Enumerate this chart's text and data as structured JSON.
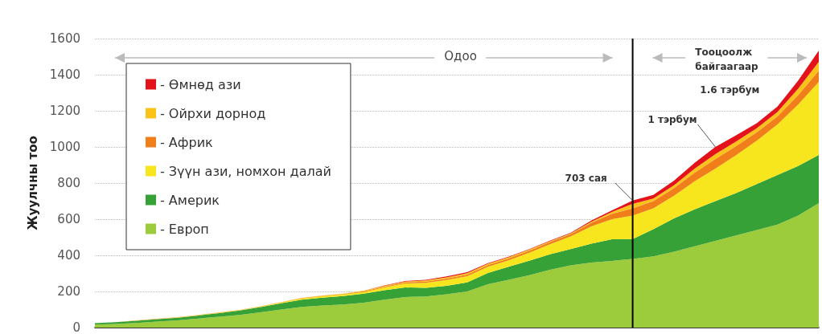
{
  "chart_data": {
    "type": "area",
    "stacked": true,
    "ylabel": "Жуулчны тоо",
    "categories": [
      null,
      null,
      null,
      null,
      null,
      null,
      null,
      null,
      null,
      null,
      null,
      null,
      null,
      null,
      null,
      null,
      null,
      null,
      null,
      null,
      null,
      null,
      null,
      null,
      null,
      null,
      null,
      null,
      null,
      null,
      null,
      null,
      null,
      null,
      null,
      null
    ],
    "ylim": [
      0,
      1600
    ],
    "yticks": [
      0,
      200,
      400,
      600,
      800,
      1000,
      1200,
      1400,
      1600
    ],
    "tick_labels": "y",
    "grid": "y",
    "legend": "top left",
    "series": [
      {
        "name": "- Европ",
        "color": "#9ccb3b",
        "values": [
          17,
          20,
          26,
          33,
          40,
          50,
          60,
          70,
          85,
          100,
          115,
          122,
          128,
          138,
          155,
          169,
          172,
          185,
          200,
          240,
          265,
          290,
          320,
          345,
          360,
          369,
          380,
          395,
          420,
          450,
          480,
          510,
          540,
          570,
          620,
          689
        ]
      },
      {
        "name": "- Америк",
        "color": "#35a136",
        "values": [
          8,
          10,
          12,
          14,
          15,
          17,
          20,
          24,
          28,
          34,
          40,
          44,
          47,
          50,
          52,
          53,
          48,
          46,
          50,
          62,
          72,
          80,
          86,
          90,
          105,
          120,
          110,
          150,
          185,
          205,
          220,
          235,
          255,
          275,
          275,
          267
        ]
      },
      {
        "name": "- Зүүн ази, номхон далай",
        "color": "#f7e51e",
        "values": [
          0,
          0,
          1,
          1,
          1,
          1,
          2,
          2,
          3,
          5,
          6,
          7,
          8,
          9,
          15,
          22,
          28,
          32,
          35,
          35,
          35,
          45,
          55,
          70,
          95,
          111,
          130,
          115,
          125,
          155,
          180,
          210,
          240,
          280,
          340,
          404
        ]
      },
      {
        "name": "- Африк",
        "color": "#f07f1b",
        "values": [
          0,
          0,
          1,
          1,
          1,
          1,
          1,
          1,
          1,
          1,
          2,
          3,
          3,
          4,
          5,
          6,
          7,
          8,
          8,
          9,
          10,
          11,
          12,
          12,
          20,
          30,
          40,
          40,
          42,
          48,
          53,
          50,
          46,
          44,
          52,
          62
        ]
      },
      {
        "name": "- Ойрхи дорнод",
        "color": "#fbc319",
        "values": [
          0,
          0,
          0,
          0,
          1,
          1,
          1,
          1,
          1,
          1,
          2,
          2,
          2,
          3,
          4,
          5,
          6,
          7,
          8,
          7,
          7,
          6,
          5,
          4,
          6,
          10,
          25,
          15,
          16,
          22,
          27,
          25,
          22,
          24,
          35,
          49
        ]
      },
      {
        "name": "- Өмнөд ази",
        "color": "#e3121b",
        "values": [
          0,
          0,
          0,
          0,
          0,
          0,
          0,
          0,
          0,
          0,
          0,
          0,
          0,
          1,
          2,
          3,
          4,
          5,
          6,
          4,
          3,
          3,
          3,
          3,
          6,
          9,
          18,
          20,
          25,
          32,
          40,
          35,
          28,
          30,
          45,
          62
        ]
      }
    ],
    "annotations": [
      "Одоо",
      "Тооцоолж\nбайгаагаар",
      "1.6 тэрбум",
      "703 сая",
      "1 тэрбум"
    ]
  }
}
